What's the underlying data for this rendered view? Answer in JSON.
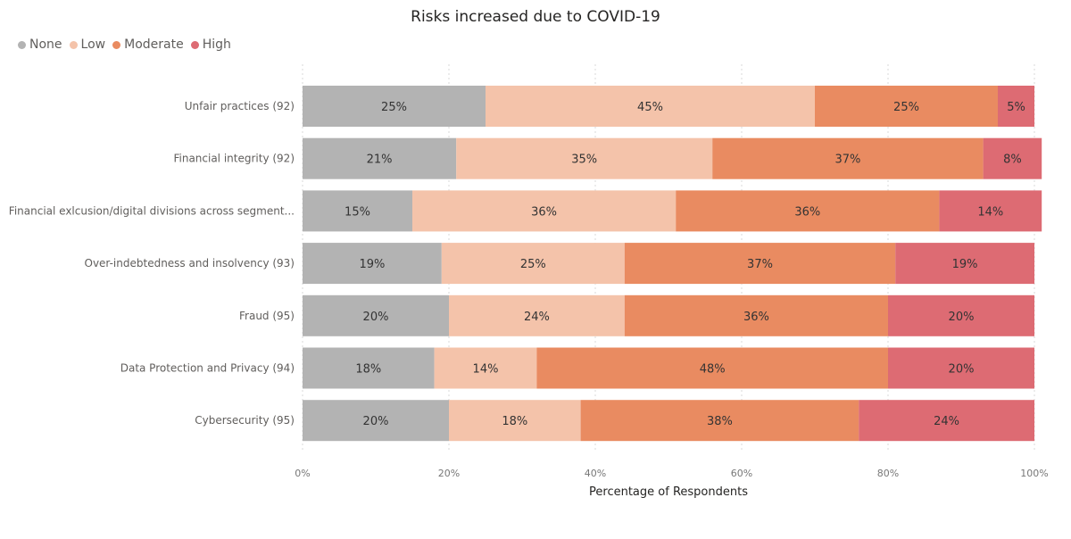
{
  "chart_data": {
    "type": "bar",
    "orientation": "horizontal",
    "stacked": "100%",
    "title": "Risks increased due to COVID-19",
    "xlabel": "Percentage of Respondents",
    "ylabel": "",
    "xlim": [
      0,
      100
    ],
    "x_ticks": [
      "0%",
      "20%",
      "40%",
      "60%",
      "80%",
      "100%"
    ],
    "grid": true,
    "legend_position": "top-left",
    "categories": [
      "Unfair practices (92)",
      "Financial integrity (92)",
      "Financial exlcusion/digital divisions across segment...",
      "Over-indebtedness and insolvency (93)",
      "Fraud (95)",
      "Data Protection and Privacy (94)",
      "Cybersecurity (95)"
    ],
    "series": [
      {
        "name": "None",
        "color": "#b3b3b3",
        "values": [
          25,
          21,
          15,
          19,
          20,
          18,
          20
        ]
      },
      {
        "name": "Low",
        "color": "#f4c3aa",
        "values": [
          45,
          35,
          36,
          25,
          24,
          14,
          18
        ]
      },
      {
        "name": "Moderate",
        "color": "#e98b61",
        "values": [
          25,
          37,
          36,
          37,
          36,
          48,
          38
        ]
      },
      {
        "name": "High",
        "color": "#dd6b73",
        "values": [
          5,
          8,
          14,
          19,
          20,
          20,
          24
        ]
      }
    ],
    "label_suffix": "%"
  }
}
